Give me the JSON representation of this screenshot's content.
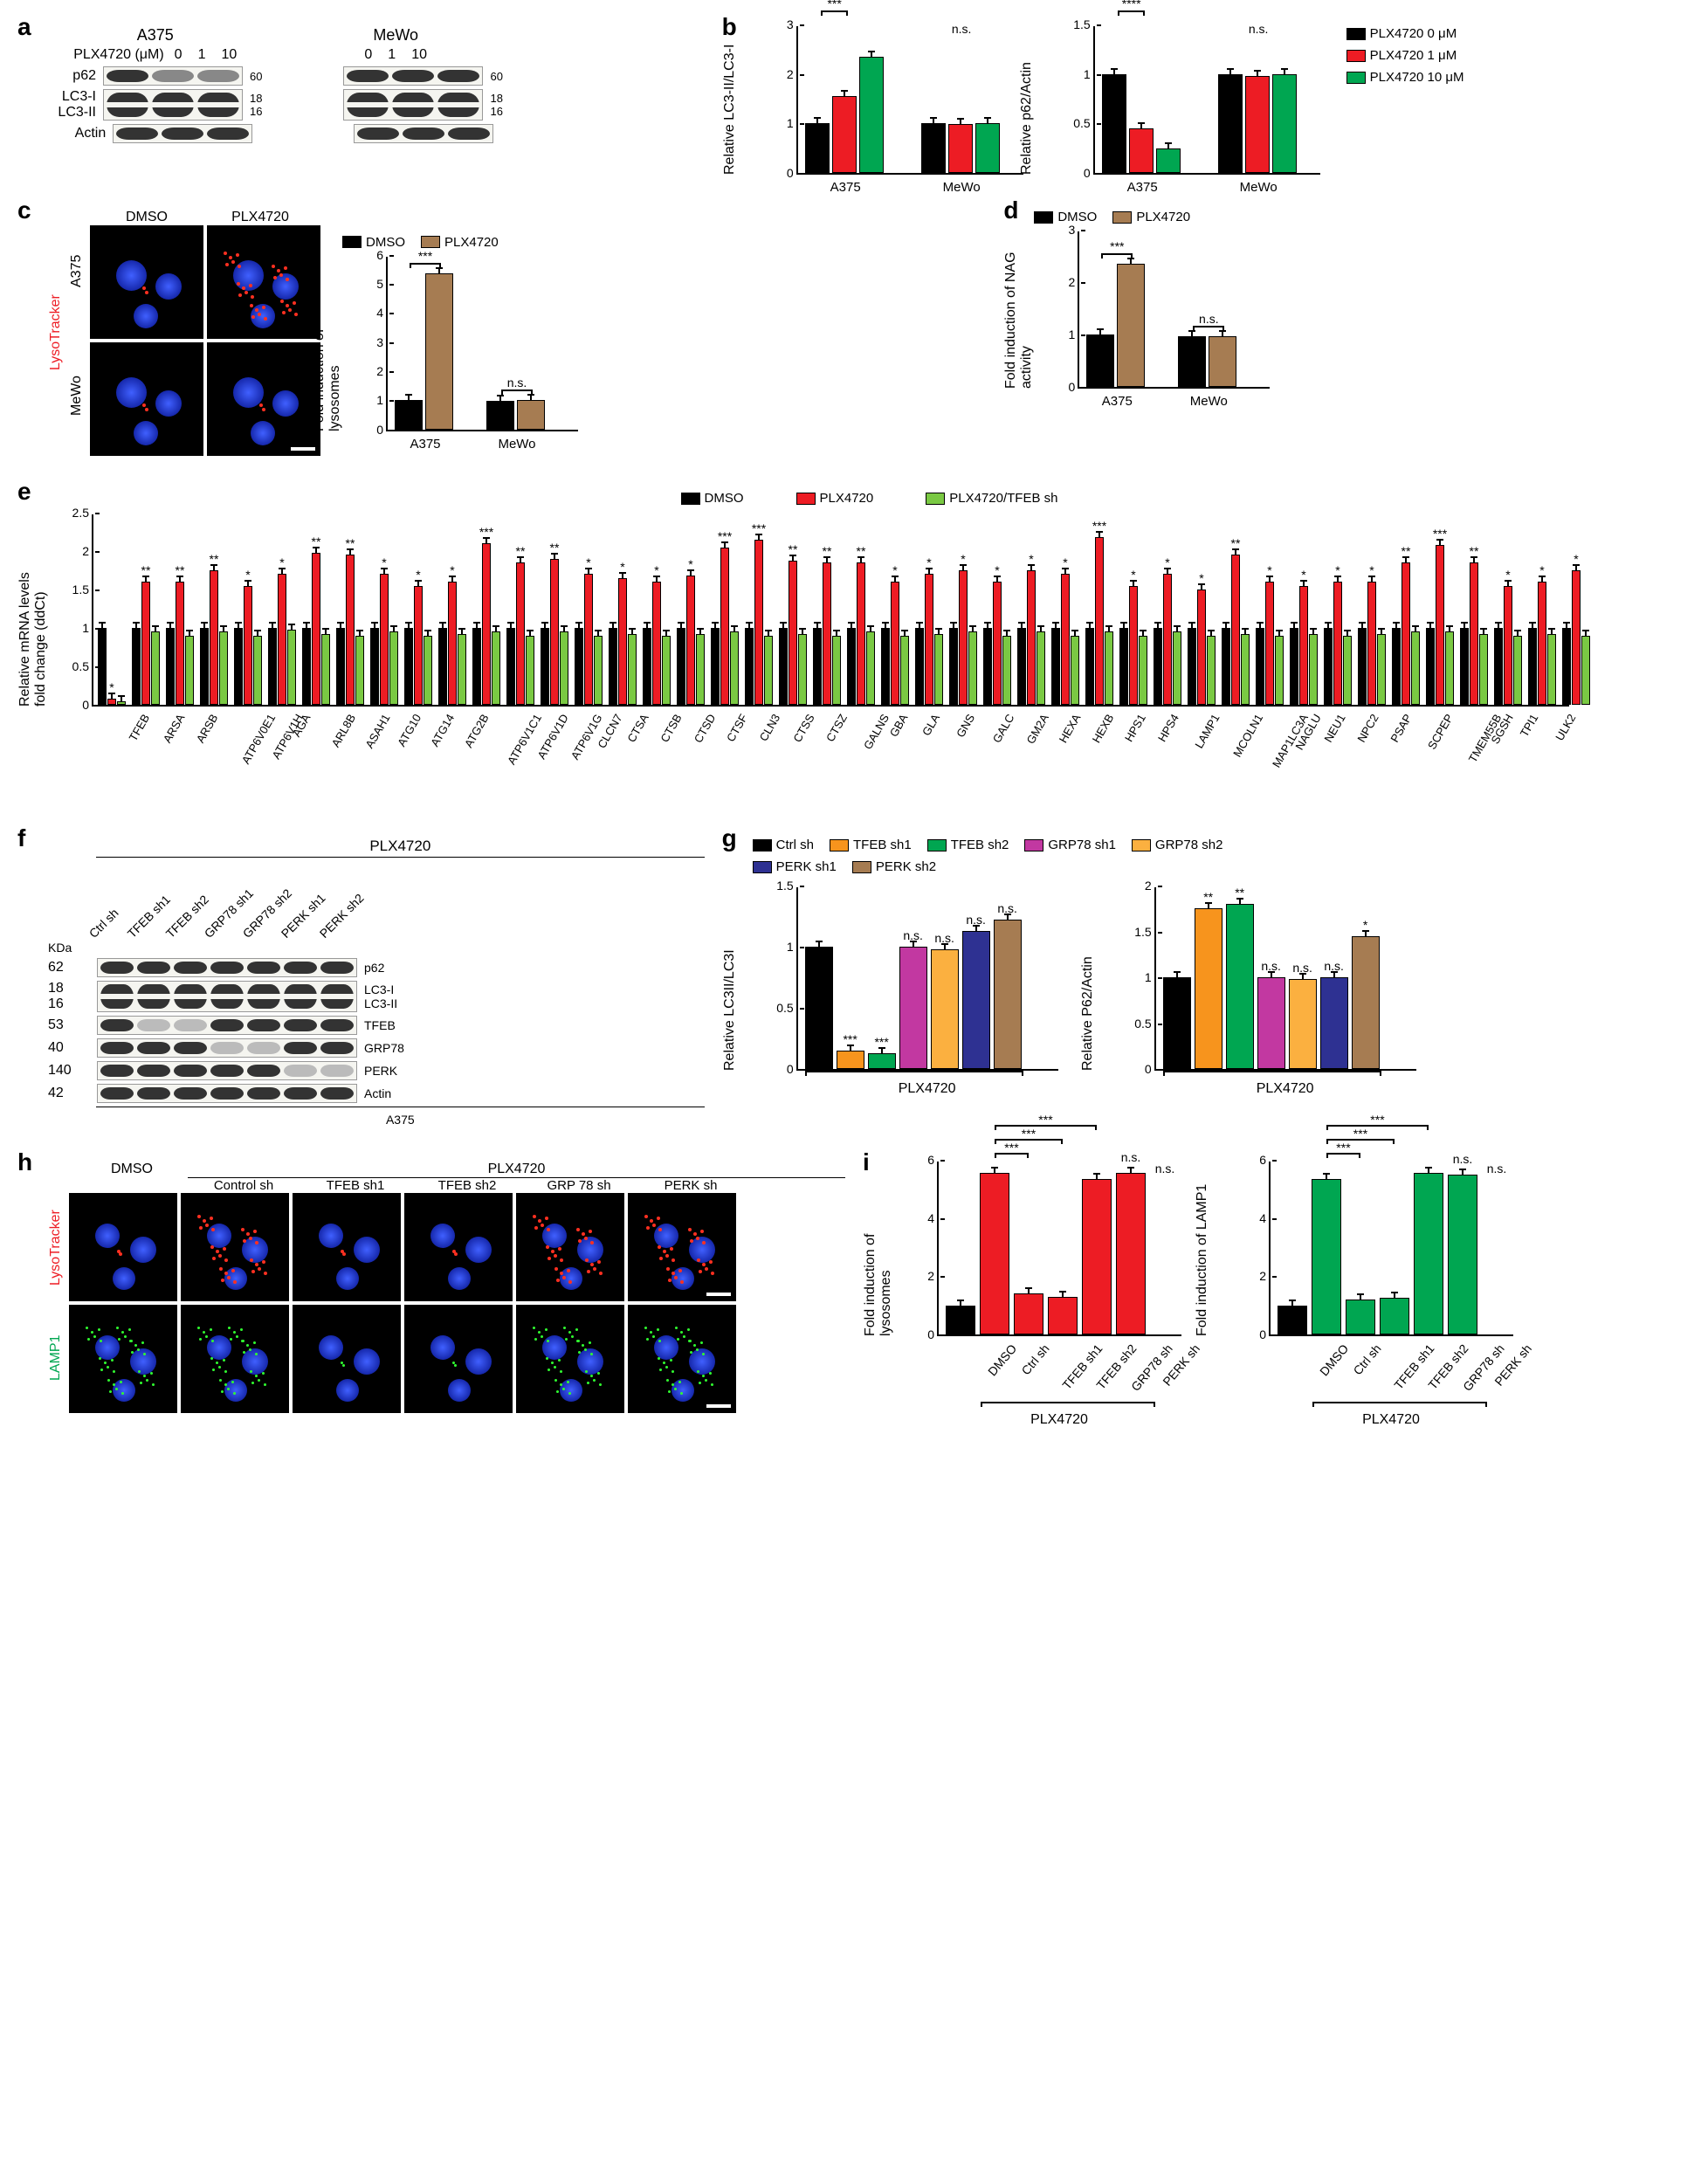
{
  "colors": {
    "black": "#000000",
    "red": "#ed1c24",
    "green": "#00a651",
    "lime": "#7ac943",
    "brown": "#a67c52",
    "orange": "#f7941d",
    "magenta": "#c238a1",
    "blue": "#2e3192",
    "darkbrown": "#8b6f47"
  },
  "panel_a": {
    "label": "a",
    "row_label": "PLX4720 (μM)",
    "doses": [
      "0",
      "1",
      "10"
    ],
    "cell_lines": [
      "A375",
      "MeWo"
    ],
    "proteins": [
      "p62",
      "LC3-I\nLC3-II",
      "Actin"
    ],
    "mws": [
      [
        "60"
      ],
      [
        "18",
        "16"
      ],
      [
        ""
      ]
    ]
  },
  "panel_b": {
    "label": "b",
    "legend": [
      {
        "label": "PLX4720 0 μM",
        "color": "#000000"
      },
      {
        "label": "PLX4720 1 μM",
        "color": "#ed1c24"
      },
      {
        "label": "PLX4720 10 μM",
        "color": "#00a651"
      }
    ],
    "chart1": {
      "ylabel": "Relative LC3-II/LC3-I",
      "ymax": 3,
      "ytick": 1,
      "groups": [
        "A375",
        "MeWo"
      ],
      "data": [
        [
          1.0,
          1.55,
          2.35
        ],
        [
          1.0,
          0.98,
          1.0
        ]
      ],
      "sig": [
        [
          "***",
          "****"
        ],
        [
          "n.s."
        ]
      ]
    },
    "chart2": {
      "ylabel": "Relative p62/Actin",
      "ymax": 1.5,
      "ytick": 0.5,
      "groups": [
        "A375",
        "MeWo"
      ],
      "data": [
        [
          1.0,
          0.45,
          0.25
        ],
        [
          1.0,
          0.98,
          1.0
        ]
      ],
      "sig": [
        [
          "****",
          "****"
        ],
        [
          "n.s."
        ]
      ]
    }
  },
  "panel_c": {
    "label": "c",
    "columns": [
      "DMSO",
      "PLX4720"
    ],
    "rows": [
      "A375",
      "MeWo"
    ],
    "marker": "LysoTracker",
    "chart": {
      "ylabel": "Fold induction of\nlysosomes",
      "ymax": 6,
      "ytick": 1,
      "legend": [
        {
          "label": "DMSO",
          "color": "#000000"
        },
        {
          "label": "PLX4720",
          "color": "#a67c52"
        }
      ],
      "groups": [
        "A375",
        "MeWo"
      ],
      "data": [
        [
          1.0,
          5.35
        ],
        [
          0.98,
          1.0
        ]
      ],
      "sig": [
        "***",
        "n.s."
      ]
    }
  },
  "panel_d": {
    "label": "d",
    "chart": {
      "ylabel": "Fold induction of NAG\nactivity",
      "ymax": 3,
      "ytick": 1,
      "legend": [
        {
          "label": "DMSO",
          "color": "#000000"
        },
        {
          "label": "PLX4720",
          "color": "#a67c52"
        }
      ],
      "groups": [
        "A375",
        "MeWo"
      ],
      "data": [
        [
          1.0,
          2.35
        ],
        [
          0.96,
          0.97
        ]
      ],
      "sig": [
        "***",
        "n.s."
      ]
    }
  },
  "panel_e": {
    "label": "e",
    "ylabel": "Relative mRNA levels\nfold change (ddCt)",
    "ymax": 2.5,
    "ytick": 0.5,
    "legend": [
      {
        "label": "DMSO",
        "color": "#000000"
      },
      {
        "label": "PLX4720",
        "color": "#ed1c24"
      },
      {
        "label": "PLX4720/TFEB sh",
        "color": "#7ac943"
      }
    ],
    "genes": [
      "TFEB",
      "ARSA",
      "ARSB",
      "ATP6V0E1",
      "ATP6V1H",
      "AGA",
      "ARL8B",
      "ASAH1",
      "ATG10",
      "ATG14",
      "ATG2B",
      "ATP6V1C1",
      "ATP6V1D",
      "ATP6V1G",
      "CLCN7",
      "CTSA",
      "CTSB",
      "CTSD",
      "CTSF",
      "CLN3",
      "CTSS",
      "CTSZ",
      "GALNS",
      "GBA",
      "GLA",
      "GNS",
      "GALC",
      "GM2A",
      "HEXA",
      "HEXB",
      "HPS1",
      "HPS4",
      "LAMP1",
      "MCOLN1",
      "MAP1LC3A",
      "NAGLU",
      "NEU1",
      "NPC2",
      "PSAP",
      "SCPEP",
      "TMEM55B",
      "SGSH",
      "TPI1",
      "ULK2"
    ],
    "dmso": [
      1.0,
      1.0,
      1.0,
      1.0,
      1.0,
      1.0,
      1.0,
      1.0,
      1.0,
      1.0,
      1.0,
      1.0,
      1.0,
      1.0,
      1.0,
      1.0,
      1.0,
      1.0,
      1.0,
      1.0,
      1.0,
      1.0,
      1.0,
      1.0,
      1.0,
      1.0,
      1.0,
      1.0,
      1.0,
      1.0,
      1.0,
      1.0,
      1.0,
      1.0,
      1.0,
      1.0,
      1.0,
      1.0,
      1.0,
      1.0,
      1.0,
      1.0,
      1.0,
      1.0
    ],
    "plx": [
      0.08,
      1.6,
      1.6,
      1.75,
      1.55,
      1.7,
      1.98,
      1.95,
      1.7,
      1.55,
      1.6,
      2.1,
      1.85,
      1.9,
      1.7,
      1.65,
      1.6,
      1.68,
      2.05,
      2.15,
      1.88,
      1.85,
      1.85,
      1.6,
      1.7,
      1.75,
      1.6,
      1.75,
      1.7,
      2.18,
      1.55,
      1.7,
      1.5,
      1.95,
      1.6,
      1.55,
      1.6,
      1.6,
      1.85,
      2.08,
      1.85,
      1.55,
      1.6,
      1.75
    ],
    "tfebsh": [
      0.05,
      0.95,
      0.9,
      0.95,
      0.9,
      0.98,
      0.92,
      0.9,
      0.95,
      0.9,
      0.92,
      0.95,
      0.9,
      0.95,
      0.9,
      0.92,
      0.9,
      0.92,
      0.95,
      0.9,
      0.92,
      0.9,
      0.95,
      0.9,
      0.92,
      0.95,
      0.9,
      0.95,
      0.9,
      0.95,
      0.9,
      0.95,
      0.9,
      0.92,
      0.9,
      0.92,
      0.9,
      0.92,
      0.95,
      0.95,
      0.92,
      0.9,
      0.92,
      0.9
    ],
    "sig": [
      "*",
      "**",
      "**",
      "**",
      "*",
      "*",
      "**",
      "**",
      "*",
      "*",
      "*",
      "***",
      "**",
      "**",
      "*",
      "*",
      "*",
      "*",
      "***",
      "***",
      "**",
      "**",
      "**",
      "*",
      "*",
      "*",
      "*",
      "*",
      "*",
      "***",
      "*",
      "*",
      "*",
      "**",
      "*",
      "*",
      "*",
      "*",
      "**",
      "***",
      "**",
      "*",
      "*",
      "*"
    ]
  },
  "panel_f": {
    "label": "f",
    "treatment": "PLX4720",
    "lanes": [
      "Ctrl sh",
      "TFEB sh1",
      "TFEB sh2",
      "GRP78 sh1",
      "GRP78 sh2",
      "PERK sh1",
      "PERK sh2"
    ],
    "rows": [
      {
        "mw": "62",
        "name": "p62"
      },
      {
        "mw": "18\n16",
        "name": "LC3-I\nLC3-II"
      },
      {
        "mw": "53",
        "name": "TFEB"
      },
      {
        "mw": "40",
        "name": "GRP78"
      },
      {
        "mw": "140",
        "name": "PERK"
      },
      {
        "mw": "42",
        "name": "Actin"
      }
    ],
    "kda": "KDa",
    "cell": "A375"
  },
  "panel_g": {
    "label": "g",
    "legend": [
      {
        "label": "Ctrl sh",
        "color": "#000000"
      },
      {
        "label": "TFEB sh1",
        "color": "#f7941d"
      },
      {
        "label": "TFEB sh2",
        "color": "#00a651"
      },
      {
        "label": "GRP78 sh1",
        "color": "#c238a1"
      },
      {
        "label": "GRP78 sh2",
        "color": "#fbb040"
      },
      {
        "label": "PERK sh1",
        "color": "#2e3192"
      },
      {
        "label": "PERK sh2",
        "color": "#a67c52"
      }
    ],
    "chart1": {
      "ylabel": "Relative LC3II/LC3I",
      "ymax": 1.5,
      "ytick": 0.5,
      "xlabel": "PLX4720",
      "data": [
        1.0,
        0.15,
        0.13,
        1.0,
        0.98,
        1.13,
        1.22
      ],
      "sig": [
        "",
        "***",
        "***",
        "n.s.",
        "n.s.",
        "n.s.",
        "n.s."
      ]
    },
    "chart2": {
      "ylabel": "Relative P62/Actin",
      "ymax": 2.0,
      "ytick": 0.5,
      "xlabel": "PLX4720",
      "data": [
        1.0,
        1.75,
        1.8,
        1.0,
        0.98,
        1.0,
        1.45
      ],
      "sig": [
        "",
        "**",
        "**",
        "n.s.",
        "n.s.",
        "n.s.",
        "*"
      ]
    }
  },
  "panel_h": {
    "label": "h",
    "col1": "DMSO",
    "treatment": "PLX4720",
    "columns": [
      "Control sh",
      "TFEB sh1",
      "TFEB sh2",
      "GRP 78 sh",
      "PERK sh"
    ],
    "rows": [
      "LysoTracker",
      "LAMP1"
    ]
  },
  "panel_i": {
    "label": "i",
    "chart1": {
      "ylabel": "Fold induction of\nlysosomes",
      "ymax": 6,
      "ytick": 2,
      "color": "#ed1c24",
      "labels": [
        "DMSO",
        "Ctrl sh",
        "TFEB sh1",
        "TFEB sh2",
        "GRP78 sh",
        "PERK sh"
      ],
      "data": [
        1.0,
        5.55,
        1.4,
        1.3,
        5.35,
        5.55
      ],
      "bracket": "PLX4720",
      "sig": [
        [
          "***",
          1,
          2
        ],
        [
          "***",
          1,
          3
        ],
        [
          "***",
          1,
          4
        ],
        [
          "n.s.",
          1,
          5
        ],
        [
          "n.s.",
          1,
          6
        ]
      ]
    },
    "chart2": {
      "ylabel": "Fold induction of LAMP1",
      "ymax": 6,
      "ytick": 2,
      "color": "#00a651",
      "labels": [
        "DMSO",
        "Ctrl sh",
        "TFEB sh1",
        "TFEB sh2",
        "GRP78 sh",
        "PERK sh"
      ],
      "data": [
        1.0,
        5.35,
        1.2,
        1.25,
        5.55,
        5.5
      ],
      "bracket": "PLX4720",
      "sig": [
        [
          "***",
          1,
          2
        ],
        [
          "***",
          1,
          3
        ],
        [
          "***",
          1,
          4
        ],
        [
          "n.s.",
          1,
          5
        ],
        [
          "n.s.",
          1,
          6
        ]
      ]
    }
  }
}
